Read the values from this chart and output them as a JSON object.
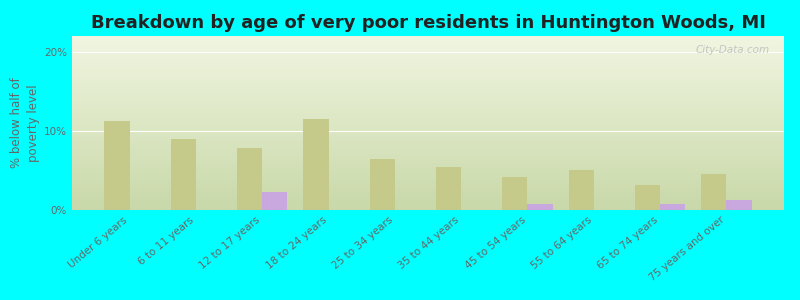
{
  "title": "Breakdown by age of very poor residents in Huntington Woods, MI",
  "ylabel": "% below half of\npoverty level",
  "categories": [
    "Under 6 years",
    "6 to 11 years",
    "12 to 17 years",
    "18 to 24 years",
    "25 to 34 years",
    "35 to 44 years",
    "45 to 54 years",
    "55 to 64 years",
    "65 to 74 years",
    "75 years and over"
  ],
  "huntington_values": [
    0,
    0,
    2.3,
    0,
    0,
    0,
    0.7,
    0,
    0.8,
    1.3
  ],
  "michigan_values": [
    11.2,
    9.0,
    7.8,
    11.5,
    6.5,
    5.5,
    4.2,
    5.0,
    3.2,
    4.5
  ],
  "huntington_color": "#c9a8e0",
  "michigan_color": "#c5c98a",
  "background_color": "#00ffff",
  "plot_bg_top": "#c8d8a8",
  "plot_bg_bottom": "#f0f5e0",
  "ylim": [
    0,
    22
  ],
  "yticks": [
    0,
    10,
    20
  ],
  "ytick_labels": [
    "0%",
    "10%",
    "20%"
  ],
  "bar_width": 0.38,
  "title_fontsize": 13,
  "label_fontsize": 8.5,
  "tick_fontsize": 7.5,
  "watermark": "City-Data.com"
}
